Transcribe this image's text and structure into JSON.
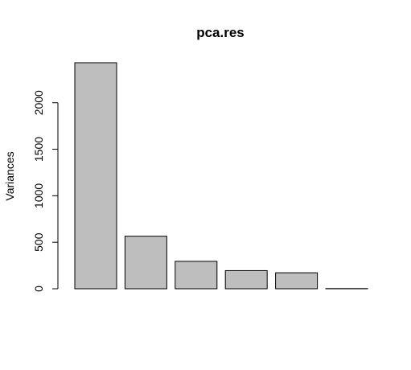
{
  "chart_data": {
    "type": "bar",
    "title": "pca.res",
    "xlabel": "",
    "ylabel": "Variances",
    "categories": [
      "",
      "",
      "",
      "",
      "",
      ""
    ],
    "values": [
      2430,
      565,
      295,
      195,
      172,
      2
    ],
    "ylim": [
      0,
      2430
    ],
    "yticks": [
      0,
      500,
      1000,
      1500,
      2000
    ],
    "grid": false,
    "bar_fill": "#bebebe",
    "bar_stroke": "#000000"
  }
}
